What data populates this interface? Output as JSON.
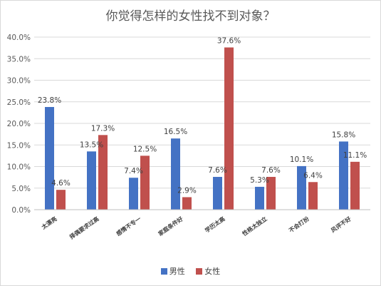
{
  "chart_data": {
    "type": "bar",
    "title": "你觉得怎样的女性找不到对象？",
    "xlabel": "",
    "ylabel": "",
    "ylim": [
      0,
      40
    ],
    "y_ticks": [
      "0.0%",
      "5.0%",
      "10.0%",
      "15.0%",
      "20.0%",
      "25.0%",
      "30.0%",
      "35.0%",
      "40.0%"
    ],
    "grid": true,
    "legend_position": "bottom",
    "categories": [
      "太漂亮",
      "择偶要求过高",
      "感情不专一",
      "家庭条件好",
      "学历太高",
      "性格太独立",
      "不会打扮",
      "风评不好"
    ],
    "series": [
      {
        "name": "男性",
        "color": "#4472c4",
        "values": [
          23.8,
          13.5,
          7.4,
          16.5,
          7.6,
          5.3,
          10.1,
          15.8
        ],
        "labels": [
          "23.8%",
          "13.5%",
          "7.4%",
          "16.5%",
          "7.6%",
          "5.3%",
          "10.1%",
          "15.8%"
        ]
      },
      {
        "name": "女性",
        "color": "#c0504d",
        "values": [
          4.6,
          17.3,
          12.5,
          2.9,
          37.6,
          7.6,
          6.4,
          11.1
        ],
        "labels": [
          "4.6%",
          "17.3%",
          "12.5%",
          "2.9%",
          "37.6%",
          "7.6%",
          "6.4%",
          "11.1%"
        ]
      }
    ]
  }
}
